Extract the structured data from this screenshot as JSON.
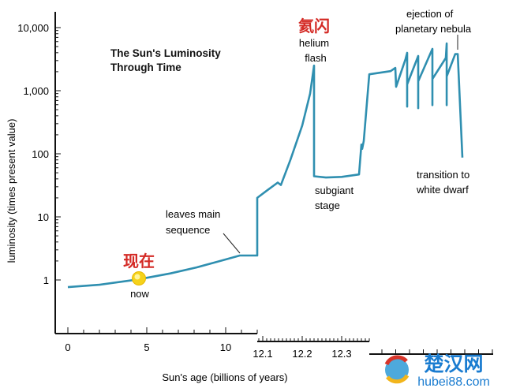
{
  "chart_data": {
    "type": "line",
    "title": "The Sun's Luminosity Through Time",
    "xlabel": "Sun's age (billions of years)",
    "ylabel": "luminosity (times present value)",
    "y_scale": "log",
    "ylim": [
      0.3,
      15000
    ],
    "y_ticks": [
      {
        "value": 1,
        "label": "1"
      },
      {
        "value": 10,
        "label": "10"
      },
      {
        "value": 100,
        "label": "100"
      },
      {
        "value": 1000,
        "label": "1,000"
      },
      {
        "value": 10000,
        "label": "10,000"
      }
    ],
    "x_axis_broken": true,
    "x_segments": [
      {
        "range": [
          -0.8,
          12
        ],
        "tick_step": 1,
        "labels": [
          {
            "value": 0,
            "label": "0"
          },
          {
            "value": 5,
            "label": "5"
          },
          {
            "value": 10,
            "label": "10"
          }
        ]
      },
      {
        "range": [
          12.086,
          12.37
        ],
        "tick_step": 0.01,
        "labels": [
          {
            "value": 12.1,
            "label": "12.1"
          },
          {
            "value": 12.2,
            "label": "12.2"
          },
          {
            "value": 12.3,
            "label": "12.3"
          }
        ]
      },
      {
        "range": [
          -0.9,
          8.1
        ],
        "tick_step": 1,
        "labels": [],
        "note_obscured": true
      }
    ],
    "series": [
      {
        "color": "#2f8fb0",
        "segments": [
          {
            "x": [
              0,
              2,
              4.45,
              6.5,
              8.15,
              9.5,
              10.9,
              11.45
            ],
            "y": [
              0.77,
              0.84,
              1.02,
              1.27,
              1.58,
              1.95,
              2.44,
              2.44
            ]
          },
          {
            "x": [
              12.086,
              12.086,
              12.11,
              12.138,
              12.146,
              12.17,
              12.2,
              12.22,
              12.23,
              12.23,
              12.26,
              12.3,
              12.344,
              12.35,
              12.352,
              12.356,
              12.37
            ],
            "y": [
              2.44,
              20,
              26,
              35,
              32,
              80,
              280,
              900,
              2500,
              44,
              42,
              43,
              47,
              140,
              120,
              160,
              1820
            ]
          },
          {
            "x": [
              -0.91,
              0.63,
              0.97,
              1.03,
              1.71,
              1.83,
              1.83,
              1.83,
              2.63,
              2.63,
              2.63,
              3.66,
              3.66,
              3.66,
              4.63,
              4.69,
              4.69,
              4.69,
              5.31,
              5.49,
              5.83
            ],
            "y": [
              1820,
              2040,
              2300,
              1150,
              3160,
              3980,
              560,
              1260,
              3550,
              530,
              1410,
              4600,
              590,
              1530,
              3300,
              5600,
              590,
              1680,
              3800,
              3800,
              87
            ]
          }
        ]
      }
    ],
    "annotations": [
      {
        "text": "leaves main\nsequence"
      },
      {
        "text": "helium\nflash"
      },
      {
        "text": "subgiant\nstage"
      },
      {
        "text": "ejection of\nplanetary nebula"
      },
      {
        "text": "transition to\nwhite dwarf"
      },
      {
        "text": "now"
      }
    ],
    "chinese_labels": {
      "now": "现在",
      "helium_flash": "氦闪"
    },
    "grid": false,
    "marker_now": {
      "x": 4.5,
      "y": 1.0,
      "color": "#f5d21a"
    }
  },
  "watermark": {
    "cn": "楚汉网",
    "url": "hubei88.com"
  }
}
